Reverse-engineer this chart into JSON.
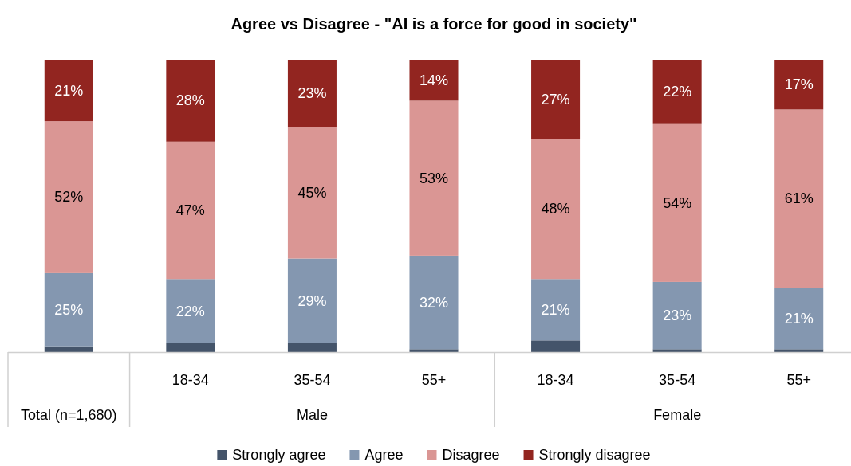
{
  "chart_data": {
    "type": "bar",
    "title": "Agree vs Disagree - \"AI is a force for good in society\"",
    "categories": [
      null,
      "18-34",
      "35-54",
      "55+",
      "18-34",
      "35-54",
      "55+"
    ],
    "annotations": [
      "Total (n=1,680)",
      "Male",
      "Female"
    ],
    "stacked": true,
    "legend": "bottom",
    "series": [
      {
        "name": "Strongly agree",
        "color": "#44546a",
        "values": [
          2,
          3,
          3,
          1,
          4,
          1,
          1
        ],
        "value_labels": [
          null,
          null,
          null,
          null,
          null,
          null,
          null
        ]
      },
      {
        "name": "Agree",
        "color": "#8497b0",
        "values": [
          25,
          22,
          29,
          32,
          21,
          23,
          21
        ],
        "value_labels": [
          "25%",
          "22%",
          "29%",
          "32%",
          "21%",
          "23%",
          "21%"
        ]
      },
      {
        "name": "Disagree",
        "color": "#da9694",
        "values": [
          52,
          47,
          45,
          53,
          48,
          54,
          61
        ],
        "value_labels": [
          "52%",
          "47%",
          "45%",
          "53%",
          "48%",
          "54%",
          "61%"
        ]
      },
      {
        "name": "Strongly disagree",
        "color": "#922520",
        "values": [
          21,
          28,
          23,
          14,
          27,
          22,
          17
        ],
        "value_labels": [
          "21%",
          "28%",
          "23%",
          "14%",
          "27%",
          "22%",
          "17%"
        ]
      }
    ]
  }
}
